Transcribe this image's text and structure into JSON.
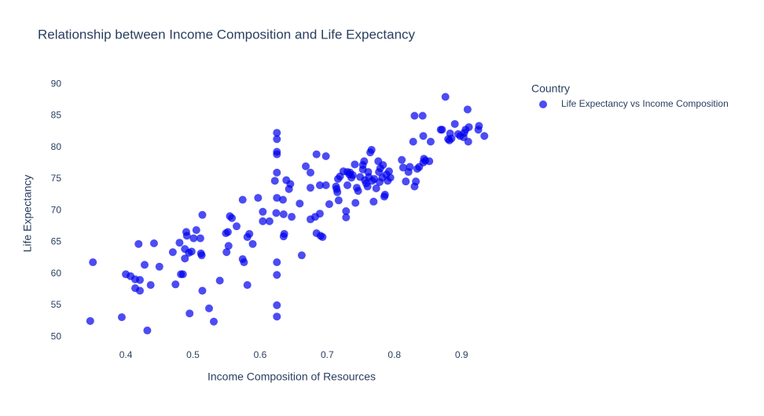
{
  "chart_data": {
    "type": "scatter",
    "title": "Relationship between Income Composition and Life Expectancy",
    "x_label": "Income Composition of Resources",
    "y_label": "Life Expectancy",
    "legend_title": "Country",
    "legend_position": "right",
    "opacity": 0.7,
    "grid": false,
    "xlim": [
      0.325,
      0.97
    ],
    "ylim": [
      47.4,
      91.4
    ],
    "xticks": [
      0.4,
      0.5,
      0.6,
      0.7,
      0.8,
      0.9
    ],
    "yticks": [
      50,
      55,
      60,
      65,
      70,
      75,
      80,
      85,
      90
    ],
    "series": [
      {
        "name": "Life Expectancy vs Income Composition",
        "color": "#0000ee",
        "x": [
          0.347,
          0.351,
          0.394,
          0.4,
          0.407,
          0.414,
          0.414,
          0.421,
          0.421,
          0.419,
          0.428,
          0.432,
          0.437,
          0.442,
          0.45,
          0.47,
          0.474,
          0.48,
          0.482,
          0.485,
          0.488,
          0.488,
          0.49,
          0.491,
          0.494,
          0.495,
          0.498,
          0.501,
          0.505,
          0.511,
          0.512,
          0.513,
          0.514,
          0.514,
          0.524,
          0.531,
          0.54,
          0.549,
          0.55,
          0.552,
          0.553,
          0.555,
          0.558,
          0.565,
          0.574,
          0.574,
          0.576,
          0.581,
          0.581,
          0.584,
          0.589,
          0.597,
          0.604,
          0.604,
          0.614,
          0.622,
          0.624,
          0.625,
          0.625,
          0.625,
          0.625,
          0.625,
          0.625,
          0.625,
          0.625,
          0.625,
          0.625,
          0.634,
          0.635,
          0.635,
          0.636,
          0.639,
          0.643,
          0.645,
          0.647,
          0.659,
          0.662,
          0.668,
          0.675,
          0.675,
          0.675,
          0.682,
          0.684,
          0.684,
          0.689,
          0.689,
          0.69,
          0.693,
          0.698,
          0.698,
          0.703,
          0.713,
          0.714,
          0.715,
          0.716,
          0.717,
          0.719,
          0.724,
          0.728,
          0.728,
          0.73,
          0.73,
          0.733,
          0.734,
          0.736,
          0.738,
          0.741,
          0.742,
          0.744,
          0.746,
          0.749,
          0.753,
          0.753,
          0.755,
          0.756,
          0.758,
          0.76,
          0.761,
          0.762,
          0.764,
          0.766,
          0.767,
          0.769,
          0.77,
          0.773,
          0.776,
          0.777,
          0.778,
          0.779,
          0.782,
          0.783,
          0.785,
          0.786,
          0.788,
          0.79,
          0.792,
          0.794,
          0.811,
          0.813,
          0.817,
          0.821,
          0.823,
          0.828,
          0.83,
          0.83,
          0.832,
          0.834,
          0.837,
          0.842,
          0.843,
          0.843,
          0.844,
          0.846,
          0.852,
          0.854,
          0.869,
          0.871,
          0.876,
          0.88,
          0.883,
          0.882,
          0.885,
          0.89,
          0.895,
          0.898,
          0.903,
          0.904,
          0.906,
          0.909,
          0.91,
          0.911,
          0.925,
          0.926,
          0.934
        ],
        "values": [
          52.5,
          61.8,
          53.1,
          59.9,
          59.6,
          59.1,
          57.7,
          57.3,
          59.0,
          64.7,
          61.4,
          51.0,
          58.2,
          64.8,
          61.1,
          63.4,
          58.3,
          64.9,
          59.9,
          59.9,
          63.9,
          62.4,
          66.6,
          66.0,
          63.3,
          53.7,
          63.5,
          65.6,
          66.9,
          65.6,
          63.2,
          62.9,
          69.3,
          57.3,
          54.5,
          52.4,
          58.9,
          66.4,
          63.4,
          66.6,
          64.4,
          69.1,
          68.8,
          67.5,
          71.7,
          62.3,
          61.8,
          65.8,
          58.2,
          66.3,
          64.7,
          72.0,
          68.3,
          69.8,
          68.3,
          74.7,
          69.6,
          72.0,
          76.0,
          78.9,
          79.3,
          81.3,
          82.3,
          61.8,
          59.8,
          55.0,
          53.2,
          71.7,
          69.4,
          65.9,
          66.3,
          74.8,
          73.4,
          74.2,
          69.0,
          71.1,
          62.9,
          77.0,
          76.0,
          73.6,
          68.6,
          69.0,
          78.9,
          66.4,
          74.0,
          69.5,
          66.0,
          65.8,
          78.6,
          74.0,
          71.0,
          73.8,
          73.4,
          72.9,
          75.0,
          71.6,
          75.4,
          76.2,
          69.9,
          68.9,
          76.1,
          74.0,
          75.7,
          76.0,
          75.2,
          75.6,
          77.3,
          71.2,
          73.6,
          73.1,
          75.3,
          77.2,
          76.5,
          77.8,
          74.8,
          74.3,
          73.8,
          76.1,
          75.3,
          79.2,
          79.6,
          74.7,
          71.4,
          75.0,
          73.5,
          77.8,
          76.1,
          74.5,
          76.7,
          75.2,
          77.2,
          72.2,
          72.5,
          75.7,
          74.7,
          76.2,
          75.2,
          78.0,
          76.8,
          74.6,
          76.1,
          76.9,
          80.9,
          85.0,
          73.8,
          74.6,
          76.6,
          76.9,
          85.0,
          81.8,
          77.6,
          78.2,
          77.9,
          77.8,
          80.9,
          82.8,
          82.8,
          88.0,
          81.3,
          82.2,
          81.1,
          81.4,
          83.7,
          82.1,
          81.8,
          81.6,
          82.3,
          82.8,
          86.0,
          80.9,
          83.2,
          82.8,
          83.4,
          81.8
        ]
      }
    ]
  }
}
